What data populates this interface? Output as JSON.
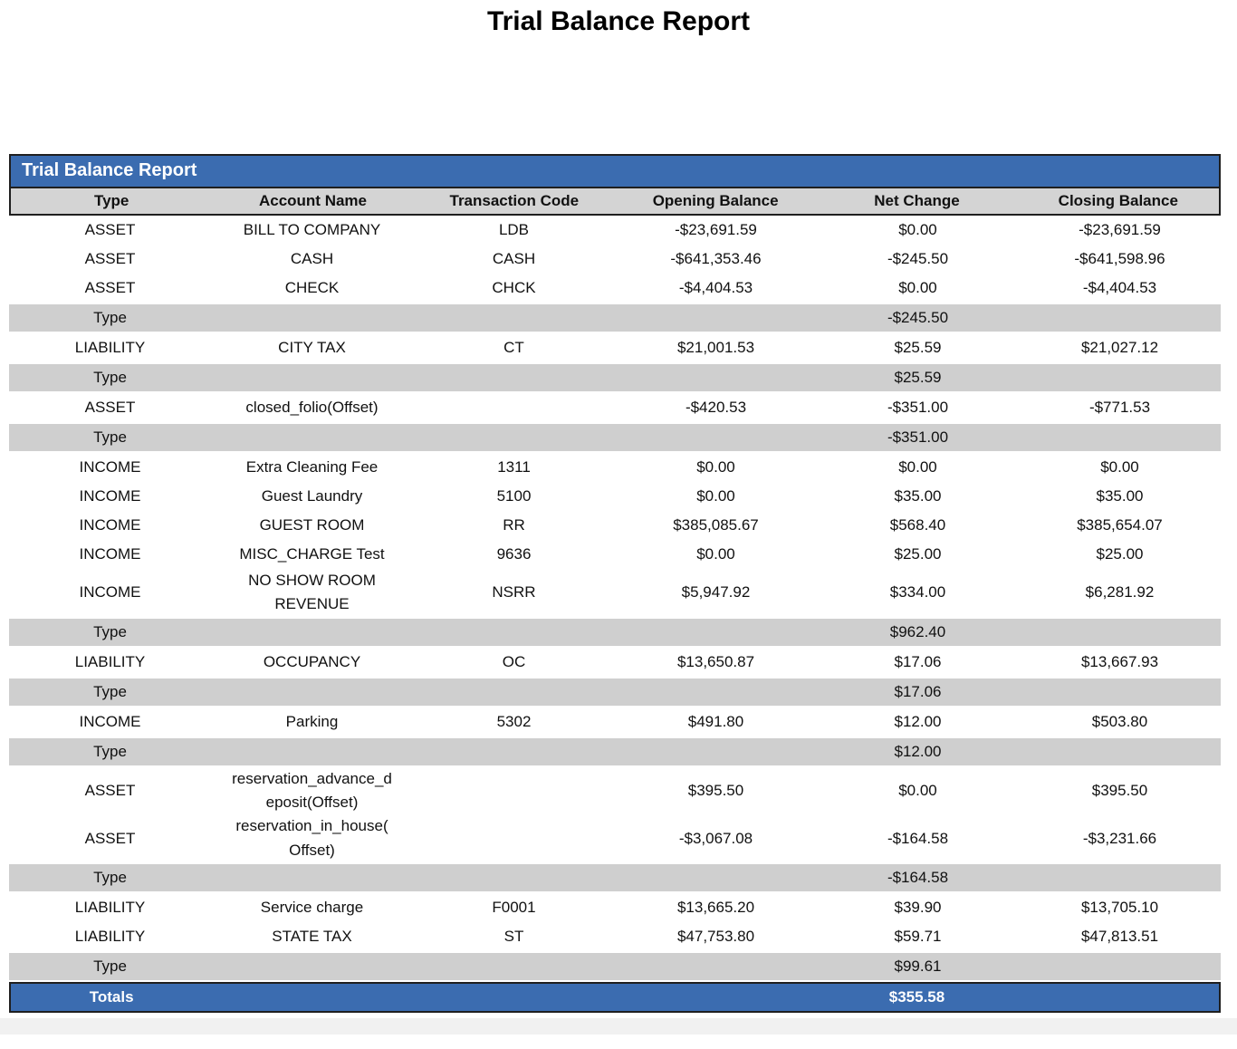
{
  "page_title": "Trial Balance Report",
  "table": {
    "header_title": "Trial Balance Report",
    "columns": [
      "Type",
      "Account Name",
      "Transaction Code",
      "Opening Balance",
      "Net Change",
      "Closing Balance"
    ],
    "colors": {
      "header_blue": "#3b6cb0",
      "column_header_gray": "#d4d4d4",
      "subtotal_band_gray": "#cfcfcf",
      "border_dark": "#1f1f1f"
    },
    "rows": [
      {
        "kind": "data",
        "type": "ASSET",
        "account": "BILL TO COMPANY",
        "code": "LDB",
        "opening": "-$23,691.59",
        "net": "$0.00",
        "closing": "-$23,691.59"
      },
      {
        "kind": "data",
        "type": "ASSET",
        "account": "CASH",
        "code": "CASH",
        "opening": "-$641,353.46",
        "net": "-$245.50",
        "closing": "-$641,598.96"
      },
      {
        "kind": "data",
        "type": "ASSET",
        "account": "CHECK",
        "code": "CHCK",
        "opening": "-$4,404.53",
        "net": "$0.00",
        "closing": "-$4,404.53"
      },
      {
        "kind": "subtotal",
        "label": "Type",
        "net": "-$245.50"
      },
      {
        "kind": "data",
        "type": "LIABILITY",
        "account": "CITY TAX",
        "code": "CT",
        "opening": "$21,001.53",
        "net": "$25.59",
        "closing": "$21,027.12"
      },
      {
        "kind": "subtotal",
        "label": "Type",
        "net": "$25.59"
      },
      {
        "kind": "data",
        "type": "ASSET",
        "account": "closed_folio(Offset)",
        "code": "",
        "opening": "-$420.53",
        "net": "-$351.00",
        "closing": "-$771.53"
      },
      {
        "kind": "subtotal",
        "label": "Type",
        "net": "-$351.00"
      },
      {
        "kind": "data",
        "type": "INCOME",
        "account": "Extra Cleaning Fee",
        "code": "1311",
        "opening": "$0.00",
        "net": "$0.00",
        "closing": "$0.00"
      },
      {
        "kind": "data",
        "type": "INCOME",
        "account": "Guest Laundry",
        "code": "5100",
        "opening": "$0.00",
        "net": "$35.00",
        "closing": "$35.00"
      },
      {
        "kind": "data",
        "type": "INCOME",
        "account": "GUEST ROOM",
        "code": "RR",
        "opening": "$385,085.67",
        "net": "$568.40",
        "closing": "$385,654.07"
      },
      {
        "kind": "data",
        "type": "INCOME",
        "account": "MISC_CHARGE Test",
        "code": "9636",
        "opening": "$0.00",
        "net": "$25.00",
        "closing": "$25.00"
      },
      {
        "kind": "data",
        "type": "INCOME",
        "account": "NO SHOW ROOM\nREVENUE",
        "code": "NSRR",
        "opening": "$5,947.92",
        "net": "$334.00",
        "closing": "$6,281.92"
      },
      {
        "kind": "subtotal",
        "label": "Type",
        "net": "$962.40"
      },
      {
        "kind": "data",
        "type": "LIABILITY",
        "account": "OCCUPANCY",
        "code": "OC",
        "opening": "$13,650.87",
        "net": "$17.06",
        "closing": "$13,667.93"
      },
      {
        "kind": "subtotal",
        "label": "Type",
        "net": "$17.06"
      },
      {
        "kind": "data",
        "type": "INCOME",
        "account": "Parking",
        "code": "5302",
        "opening": "$491.80",
        "net": "$12.00",
        "closing": "$503.80"
      },
      {
        "kind": "subtotal",
        "label": "Type",
        "net": "$12.00"
      },
      {
        "kind": "data",
        "type": "ASSET",
        "account": "reservation_advance_d\neposit(Offset)",
        "code": "",
        "opening": "$395.50",
        "net": "$0.00",
        "closing": "$395.50"
      },
      {
        "kind": "data",
        "type": "ASSET",
        "account": "reservation_in_house(\nOffset)",
        "code": "",
        "opening": "-$3,067.08",
        "net": "-$164.58",
        "closing": "-$3,231.66"
      },
      {
        "kind": "subtotal",
        "label": "Type",
        "net": "-$164.58"
      },
      {
        "kind": "data",
        "type": "LIABILITY",
        "account": "Service charge",
        "code": "F0001",
        "opening": "$13,665.20",
        "net": "$39.90",
        "closing": "$13,705.10"
      },
      {
        "kind": "data",
        "type": "LIABILITY",
        "account": "STATE TAX",
        "code": "ST",
        "opening": "$47,753.80",
        "net": "$59.71",
        "closing": "$47,813.51"
      },
      {
        "kind": "subtotal",
        "label": "Type",
        "net": "$99.61"
      },
      {
        "kind": "totals",
        "label": "Totals",
        "net": "$355.58"
      }
    ]
  }
}
